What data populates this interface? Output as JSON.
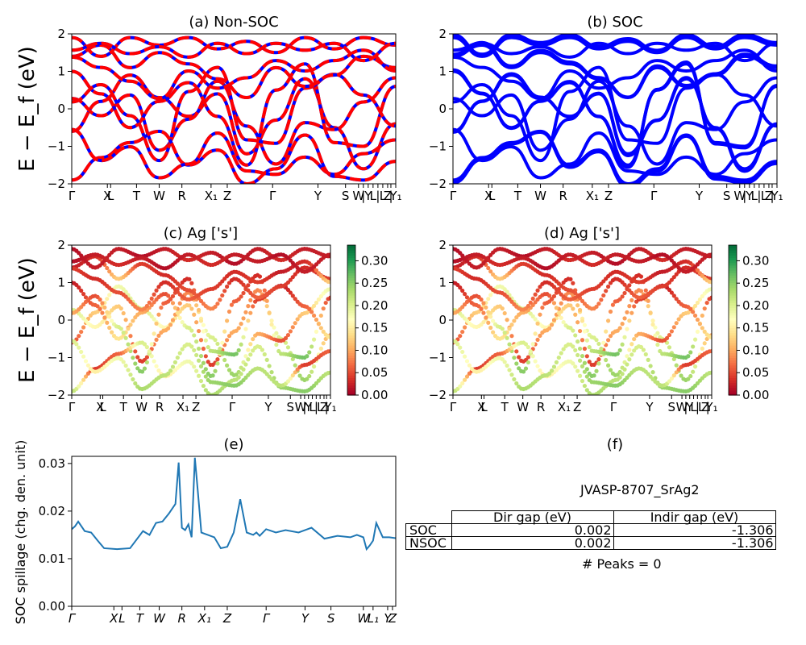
{
  "panels": {
    "a": {
      "title": "(a) Non-SOC"
    },
    "b": {
      "title": "(b) SOC"
    },
    "c": {
      "title": "(c)  Ag ['s']"
    },
    "d": {
      "title": "(d) Ag ['s']"
    },
    "e": {
      "title": "(e)"
    },
    "f": {
      "title": "(f)"
    }
  },
  "y_axis_label_band": "E − E_f (eV)",
  "y_axis_label_spillage": "SOC spillage (chg. den. unit)",
  "kpath_labels_top": [
    "Γ",
    "X",
    "L",
    "T",
    "W",
    "R",
    "X₁",
    "Z",
    "Γ",
    "Y",
    "S",
    "W",
    "|",
    "Y",
    "L",
    "|",
    "L",
    "Z",
    "|",
    "Y₁"
  ],
  "kpath_labels_spillage": [
    "Γ",
    "X",
    "L",
    "T",
    "W",
    "R",
    "X₁",
    "Z",
    "Γ",
    "Y",
    "S",
    "W",
    "L₁",
    "Y",
    "Z"
  ],
  "colorbar": {
    "ticks": [
      "0.00",
      "0.05",
      "0.10",
      "0.15",
      "0.20",
      "0.25",
      "0.30"
    ],
    "max": 0.335,
    "colors": [
      "#a50026",
      "#d73027",
      "#f46d43",
      "#fdae61",
      "#fee08b",
      "#ffffbf",
      "#d9ef8b",
      "#a6d96a",
      "#66bd63",
      "#1a9850",
      "#006837"
    ]
  },
  "colors": {
    "nonsoc_solid": "#ff0000",
    "nonsoc_dash": "#0000ff",
    "soc": "#0000ff",
    "spillage": "#1f77b4"
  },
  "chart_data": [
    {
      "type": "line",
      "title": "(a) Non-SOC",
      "ylabel": "E − E_f (eV)",
      "ylim": [
        -2,
        2
      ],
      "yticks": [
        -2,
        -1,
        0,
        1,
        2
      ],
      "x": [
        0,
        0.09,
        0.18,
        0.27,
        0.36,
        0.45,
        0.54,
        0.63,
        0.72,
        0.81,
        0.9,
        1.0
      ],
      "series": [
        {
          "name": "band1",
          "values": [
            -0.6,
            0.2,
            0.9,
            0.3,
            -0.2,
            0.4,
            -1.2,
            -0.3,
            0.8,
            -0.5,
            -1.6,
            -0.4
          ]
        },
        {
          "name": "band2",
          "values": [
            1.0,
            0.4,
            -0.5,
            0.2,
            0.7,
            -0.2,
            -1.5,
            0.5,
            1.2,
            -0.9,
            -1.0,
            0.6
          ]
        },
        {
          "name": "band3",
          "values": [
            1.4,
            1.7,
            1.1,
            1.5,
            1.2,
            0.8,
            0.3,
            1.1,
            0.6,
            0.9,
            1.4,
            1.1
          ]
        },
        {
          "name": "band4",
          "values": [
            1.9,
            1.4,
            1.9,
            1.7,
            1.9,
            1.6,
            1.8,
            1.5,
            1.9,
            1.6,
            1.9,
            1.7
          ]
        },
        {
          "name": "band5",
          "values": [
            -1.9,
            -1.3,
            -0.9,
            -0.6,
            -1.5,
            -1.1,
            -2.0,
            -1.6,
            -0.7,
            -1.8,
            -1.9,
            -1.4
          ]
        }
      ]
    },
    {
      "type": "line",
      "title": "(b) SOC",
      "ylim": [
        -2,
        2
      ],
      "yticks": [
        -2,
        -1,
        0,
        1,
        2
      ],
      "x": [
        0,
        0.09,
        0.18,
        0.27,
        0.36,
        0.45,
        0.54,
        0.63,
        0.72,
        0.81,
        0.9,
        1.0
      ],
      "series": [
        {
          "name": "band1",
          "values": [
            -0.6,
            0.2,
            0.9,
            0.3,
            -0.2,
            0.4,
            -1.2,
            -0.3,
            0.8,
            -0.5,
            -1.6,
            -0.4
          ]
        },
        {
          "name": "band2",
          "values": [
            1.0,
            0.4,
            -0.5,
            0.2,
            0.7,
            -0.2,
            -1.5,
            0.5,
            1.2,
            -0.9,
            -1.0,
            0.6
          ]
        },
        {
          "name": "band3",
          "values": [
            1.4,
            1.7,
            1.1,
            1.5,
            1.2,
            0.8,
            0.3,
            1.1,
            0.6,
            0.9,
            1.4,
            1.1
          ]
        },
        {
          "name": "band4",
          "values": [
            1.9,
            1.4,
            1.9,
            1.7,
            1.9,
            1.6,
            1.8,
            1.5,
            1.9,
            1.6,
            1.9,
            1.7
          ]
        },
        {
          "name": "band5",
          "values": [
            -1.9,
            -1.3,
            -0.9,
            -0.6,
            -1.5,
            -1.1,
            -2.0,
            -1.6,
            -0.7,
            -1.8,
            -1.9,
            -1.4
          ]
        }
      ]
    },
    {
      "type": "scatter",
      "title": "(c)  Ag ['s']",
      "ylim": [
        -2,
        2
      ],
      "color_range": [
        0,
        0.335
      ],
      "x": [
        0,
        0.09,
        0.18,
        0.27,
        0.36,
        0.45,
        0.54,
        0.63,
        0.72,
        0.81,
        0.9,
        1.0
      ],
      "series": [
        {
          "values": [
            -0.6,
            0.2,
            0.9,
            0.3,
            -0.2,
            0.4,
            -1.2,
            -0.3,
            0.8,
            -0.5,
            -1.6,
            -0.4
          ],
          "weight": [
            0.05,
            0.12,
            0.18,
            0.2,
            0.16,
            0.12,
            0.04,
            0.1,
            0.08,
            0.2,
            0.24,
            0.1
          ]
        },
        {
          "values": [
            1.0,
            0.4,
            -0.5,
            0.2,
            0.7,
            -0.2,
            -1.5,
            0.5,
            1.2,
            -0.9,
            -1.0,
            0.6
          ],
          "weight": [
            0.02,
            0.06,
            0.14,
            0.1,
            0.05,
            0.2,
            0.25,
            0.06,
            0.03,
            0.22,
            0.26,
            0.04
          ]
        },
        {
          "values": [
            1.4,
            1.7,
            1.1,
            1.5,
            1.2,
            0.8,
            0.3,
            1.1,
            0.6,
            0.9,
            1.4,
            1.1
          ],
          "weight": [
            0.02,
            0.03,
            0.12,
            0.04,
            0.03,
            0.05,
            0.08,
            0.03,
            0.06,
            0.04,
            0.03,
            0.04
          ]
        },
        {
          "values": [
            1.9,
            1.4,
            1.9,
            1.7,
            1.9,
            1.6,
            1.8,
            1.5,
            1.9,
            1.6,
            1.9,
            1.7
          ],
          "weight": [
            0.01,
            0.02,
            0.02,
            0.01,
            0.02,
            0.03,
            0.02,
            0.01,
            0.02,
            0.03,
            0.02,
            0.02
          ]
        },
        {
          "values": [
            -1.9,
            -1.3,
            -0.9,
            -0.6,
            -1.5,
            -1.1,
            -2.0,
            -1.6,
            -0.7,
            -1.8,
            -1.9,
            -1.4
          ],
          "weight": [
            0.22,
            0.04,
            0.06,
            0.2,
            0.15,
            0.18,
            0.23,
            0.22,
            0.2,
            0.24,
            0.25,
            0.22
          ]
        }
      ]
    },
    {
      "type": "scatter",
      "title": "(d) Ag ['s']",
      "ylim": [
        -2,
        2
      ],
      "color_range": [
        0,
        0.335
      ],
      "x": [
        0,
        0.09,
        0.18,
        0.27,
        0.36,
        0.45,
        0.54,
        0.63,
        0.72,
        0.81,
        0.9,
        1.0
      ],
      "series": [
        {
          "values": [
            -0.6,
            0.2,
            0.9,
            0.3,
            -0.2,
            0.4,
            -1.2,
            -0.3,
            0.8,
            -0.5,
            -1.6,
            -0.4
          ],
          "weight": [
            0.05,
            0.12,
            0.18,
            0.2,
            0.16,
            0.12,
            0.04,
            0.1,
            0.08,
            0.2,
            0.24,
            0.1
          ]
        },
        {
          "values": [
            1.0,
            0.4,
            -0.5,
            0.2,
            0.7,
            -0.2,
            -1.5,
            0.5,
            1.2,
            -0.9,
            -1.0,
            0.6
          ],
          "weight": [
            0.02,
            0.06,
            0.14,
            0.1,
            0.05,
            0.2,
            0.25,
            0.06,
            0.03,
            0.22,
            0.26,
            0.04
          ]
        },
        {
          "values": [
            1.4,
            1.7,
            1.1,
            1.5,
            1.2,
            0.8,
            0.3,
            1.1,
            0.6,
            0.9,
            1.4,
            1.1
          ],
          "weight": [
            0.02,
            0.03,
            0.12,
            0.04,
            0.03,
            0.05,
            0.08,
            0.03,
            0.06,
            0.04,
            0.03,
            0.04
          ]
        },
        {
          "values": [
            1.9,
            1.4,
            1.9,
            1.7,
            1.9,
            1.6,
            1.8,
            1.5,
            1.9,
            1.6,
            1.9,
            1.7
          ],
          "weight": [
            0.01,
            0.02,
            0.02,
            0.01,
            0.02,
            0.03,
            0.02,
            0.01,
            0.02,
            0.03,
            0.02,
            0.02
          ]
        },
        {
          "values": [
            -1.9,
            -1.3,
            -0.9,
            -0.6,
            -1.5,
            -1.1,
            -2.0,
            -1.6,
            -0.7,
            -1.8,
            -1.9,
            -1.4
          ],
          "weight": [
            0.22,
            0.04,
            0.06,
            0.2,
            0.15,
            0.18,
            0.23,
            0.22,
            0.2,
            0.24,
            0.25,
            0.22
          ]
        }
      ]
    },
    {
      "type": "line",
      "title": "(e)",
      "ylabel": "SOC spillage (chg. den. unit)",
      "ylim": [
        0,
        0.0315
      ],
      "yticks": [
        "0.00",
        "0.01",
        "0.02",
        "0.03"
      ],
      "x": [
        0,
        0.01,
        0.02,
        0.04,
        0.06,
        0.08,
        0.1,
        0.14,
        0.18,
        0.22,
        0.24,
        0.26,
        0.28,
        0.3,
        0.32,
        0.33,
        0.34,
        0.35,
        0.36,
        0.37,
        0.38,
        0.39,
        0.4,
        0.42,
        0.44,
        0.46,
        0.48,
        0.5,
        0.52,
        0.54,
        0.56,
        0.57,
        0.58,
        0.6,
        0.63,
        0.66,
        0.7,
        0.74,
        0.78,
        0.82,
        0.86,
        0.88,
        0.9,
        0.91,
        0.92,
        0.93,
        0.94,
        0.96,
        0.98,
        1.0
      ],
      "series": [
        {
          "name": "SOC spillage",
          "values": [
            0.0162,
            0.0168,
            0.0178,
            0.0158,
            0.0155,
            0.0138,
            0.0122,
            0.012,
            0.0122,
            0.0158,
            0.015,
            0.0175,
            0.0178,
            0.0195,
            0.0215,
            0.0302,
            0.0165,
            0.016,
            0.0172,
            0.0145,
            0.0312,
            0.0235,
            0.0155,
            0.015,
            0.0145,
            0.0122,
            0.0125,
            0.0155,
            0.0225,
            0.0155,
            0.015,
            0.0155,
            0.0148,
            0.0162,
            0.0155,
            0.016,
            0.0155,
            0.0165,
            0.0142,
            0.0148,
            0.0145,
            0.015,
            0.0145,
            0.012,
            0.0128,
            0.0138,
            0.0175,
            0.0145,
            0.0145,
            0.0143
          ]
        }
      ]
    }
  ],
  "table": {
    "title": "JVASP-8707_SrAg2",
    "headers": [
      "Dir gap (eV)",
      "Indir gap (eV)"
    ],
    "rows": [
      {
        "label": "SOC",
        "dir": "0.002",
        "indir": "-1.306"
      },
      {
        "label": "NSOC",
        "dir": "0.002",
        "indir": "-1.306"
      }
    ],
    "peaks": "# Peaks = 0"
  }
}
